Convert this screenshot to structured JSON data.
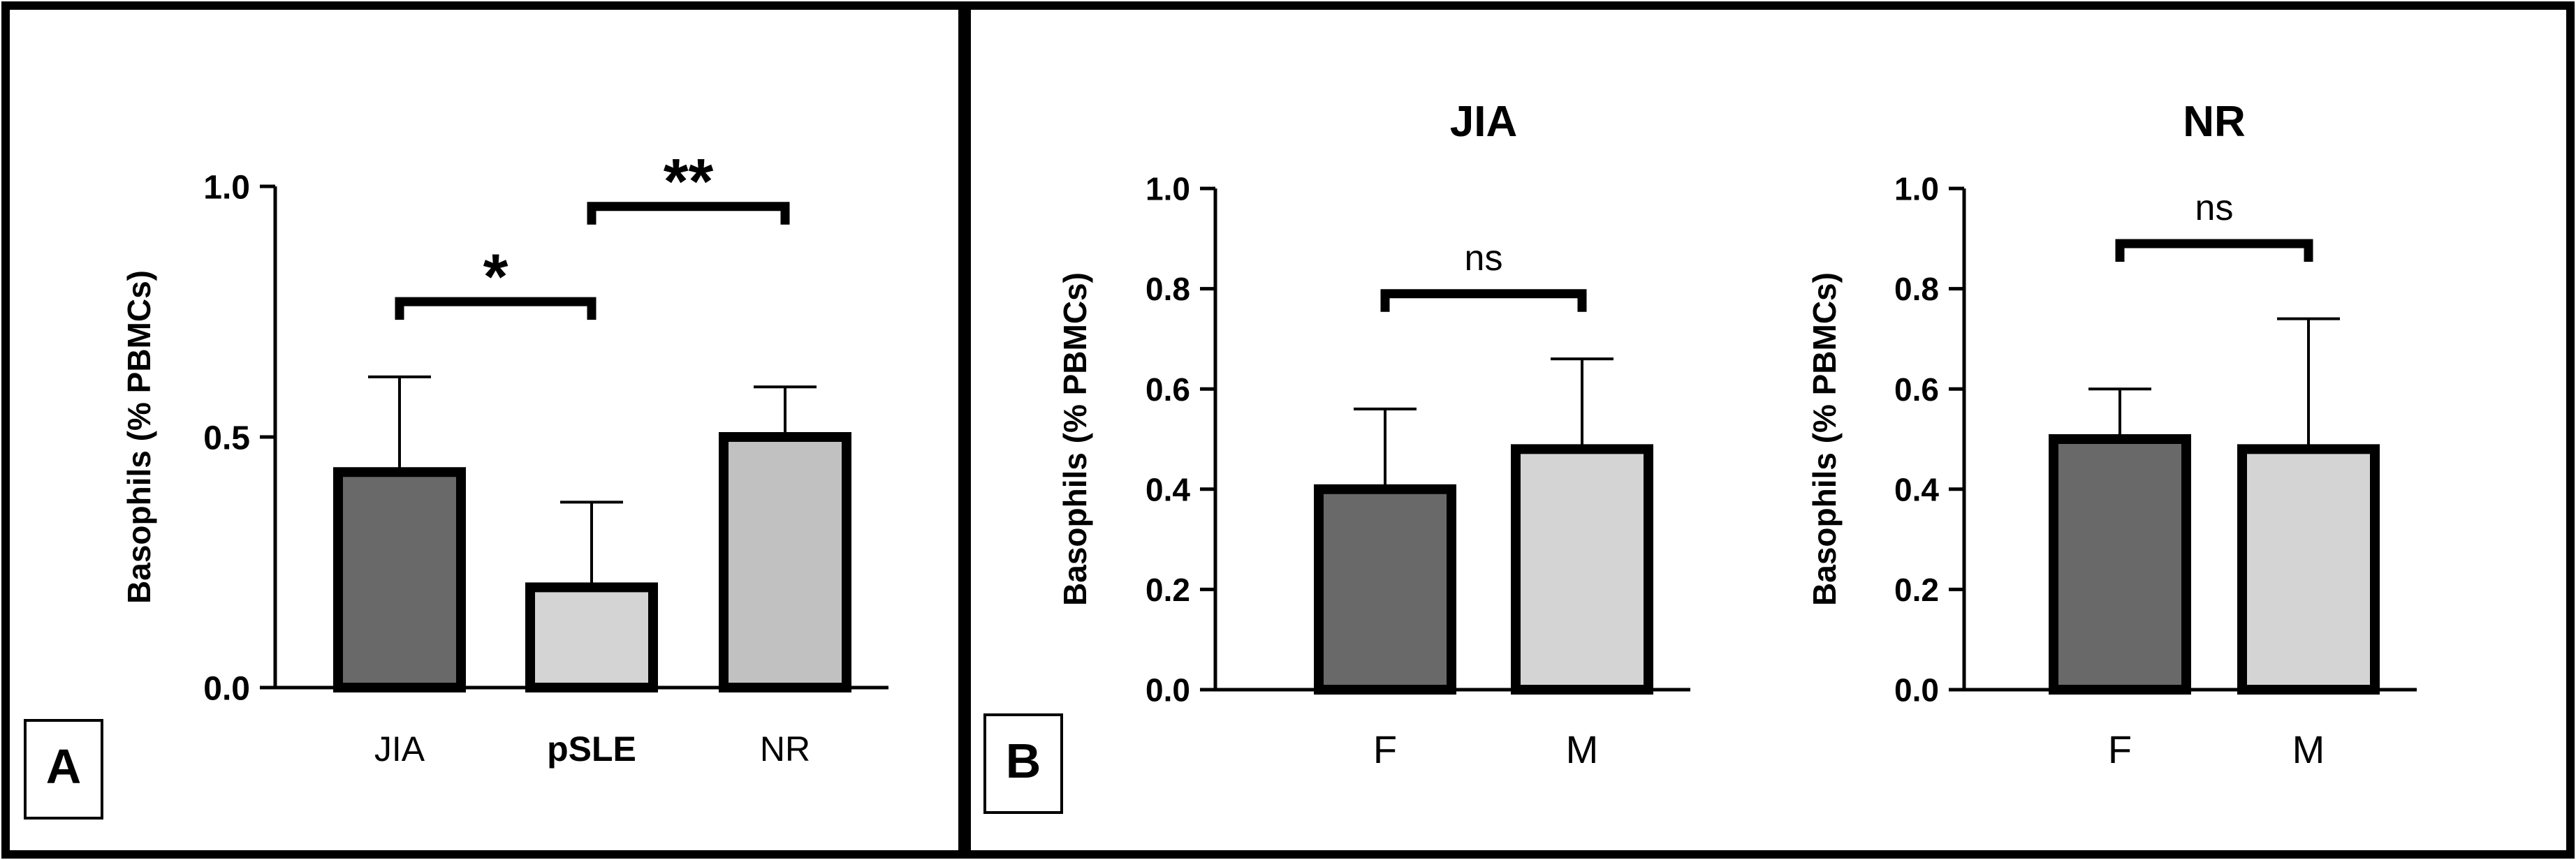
{
  "figure": {
    "panel_a_label": "A",
    "panel_b_label": "B"
  },
  "colors": {
    "dark_bar": "#696969",
    "light_bar": "#d4d4d4",
    "mid_bar": "#c1c1c1",
    "border": "#000000"
  },
  "chart_data": [
    {
      "id": "panel-a",
      "type": "bar",
      "title": "",
      "ylabel": "Basophils (% PBMCs)",
      "xlabel": "",
      "ylim": [
        0,
        1.0
      ],
      "yticks": [
        0.0,
        0.5,
        1.0
      ],
      "ytick_labels": [
        "0.0",
        "0.5",
        "1.0"
      ],
      "categories": [
        "JIA",
        "pSLE",
        "NR"
      ],
      "category_bold": [
        false,
        true,
        false
      ],
      "values": [
        0.43,
        0.2,
        0.5
      ],
      "error_upper": [
        0.62,
        0.37,
        0.6
      ],
      "bar_colors": [
        "dark_bar",
        "light_bar",
        "mid_bar"
      ],
      "comparisons": [
        {
          "from": 0,
          "to": 1,
          "label": "*",
          "y": 0.77
        },
        {
          "from": 1,
          "to": 2,
          "label": "**",
          "y": 0.96
        }
      ]
    },
    {
      "id": "panel-b-jia",
      "type": "bar",
      "title": "JIA",
      "ylabel": "Basophils (% PBMCs)",
      "xlabel": "",
      "ylim": [
        0,
        1.0
      ],
      "yticks": [
        0.0,
        0.2,
        0.4,
        0.6,
        0.8,
        1.0
      ],
      "ytick_labels": [
        "0.0",
        "0.2",
        "0.4",
        "0.6",
        "0.8",
        "1.0"
      ],
      "categories": [
        "F",
        "M"
      ],
      "category_bold": [
        false,
        false
      ],
      "values": [
        0.4,
        0.48
      ],
      "error_upper": [
        0.56,
        0.66
      ],
      "bar_colors": [
        "dark_bar",
        "light_bar"
      ],
      "comparisons": [
        {
          "from": 0,
          "to": 1,
          "label": "ns",
          "y": 0.79
        }
      ]
    },
    {
      "id": "panel-b-nr",
      "type": "bar",
      "title": "NR",
      "ylabel": "Basophils (% PBMCs)",
      "xlabel": "",
      "ylim": [
        0,
        1.0
      ],
      "yticks": [
        0.0,
        0.2,
        0.4,
        0.6,
        0.8,
        1.0
      ],
      "ytick_labels": [
        "0.0",
        "0.2",
        "0.4",
        "0.6",
        "0.8",
        "1.0"
      ],
      "categories": [
        "F",
        "M"
      ],
      "category_bold": [
        false,
        false
      ],
      "values": [
        0.5,
        0.48
      ],
      "error_upper": [
        0.6,
        0.74
      ],
      "bar_colors": [
        "dark_bar",
        "light_bar"
      ],
      "comparisons": [
        {
          "from": 0,
          "to": 1,
          "label": "ns",
          "y": 0.89
        }
      ]
    }
  ]
}
